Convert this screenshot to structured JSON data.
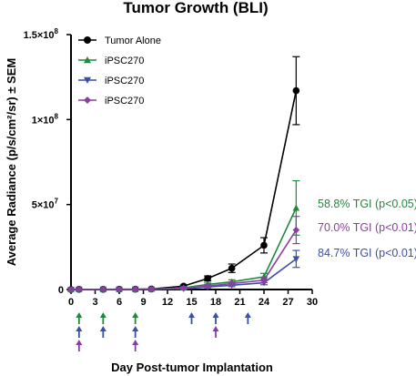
{
  "chart_data": {
    "type": "line",
    "title": "Tumor Growth (BLI)",
    "xlabel": "Day Post-tumor Implantation",
    "ylabel": "Average Radiance (p/s/cm²/sr) ± SEM",
    "xlim": [
      0,
      30
    ],
    "ylim": [
      0,
      150000000
    ],
    "x_ticks": [
      0,
      3,
      6,
      9,
      12,
      15,
      18,
      21,
      24,
      27,
      30
    ],
    "y_ticks": [
      {
        "value": 0,
        "label": "0"
      },
      {
        "value": 50000000,
        "label": "5×10",
        "exp": "7"
      },
      {
        "value": 100000000,
        "label": "1×10",
        "exp": "8"
      },
      {
        "value": 150000000,
        "label": "1.5×10",
        "exp": "8"
      }
    ],
    "legend_position": "top-left",
    "grid": false,
    "series": [
      {
        "name": "Tumor Alone",
        "color": "#000000",
        "marker": "circle",
        "x": [
          0,
          1,
          4,
          6,
          8,
          10,
          14,
          17,
          20,
          24,
          28
        ],
        "y": [
          0,
          100000,
          100000,
          150000,
          200000,
          300000,
          2000000,
          6500000,
          12500000,
          26000000,
          117000000
        ],
        "err": [
          0,
          0,
          0,
          0,
          0,
          0,
          500000,
          1500000,
          2500000,
          4500000,
          20000000
        ]
      },
      {
        "name": "iPSC270",
        "color": "#1f8a3c",
        "marker": "triangle-up",
        "x": [
          0,
          1,
          4,
          6,
          8,
          10,
          14,
          17,
          20,
          24,
          28
        ],
        "y": [
          0,
          100000,
          100000,
          100000,
          100000,
          200000,
          1000000,
          3000000,
          4500000,
          7500000,
          48000000
        ],
        "err": [
          0,
          0,
          0,
          0,
          0,
          0,
          300000,
          800000,
          1200000,
          2000000,
          16000000
        ]
      },
      {
        "name": "iPSC270",
        "color": "#3a4fa8",
        "marker": "triangle-down",
        "x": [
          0,
          1,
          4,
          6,
          8,
          10,
          14,
          17,
          20,
          24,
          28
        ],
        "y": [
          0,
          100000,
          100000,
          100000,
          100000,
          150000,
          500000,
          1500000,
          2500000,
          4000000,
          18000000
        ],
        "err": [
          0,
          0,
          0,
          0,
          0,
          0,
          200000,
          500000,
          800000,
          1200000,
          5000000
        ]
      },
      {
        "name": "iPSC270",
        "color": "#8a3fa0",
        "marker": "diamond",
        "x": [
          0,
          1,
          4,
          6,
          8,
          10,
          14,
          17,
          20,
          24,
          28
        ],
        "y": [
          0,
          100000,
          100000,
          100000,
          100000,
          150000,
          700000,
          2000000,
          3500000,
          5500000,
          35000000
        ],
        "err": [
          0,
          0,
          0,
          0,
          0,
          0,
          200000,
          600000,
          1000000,
          1500000,
          8000000
        ]
      }
    ],
    "annotations": [
      {
        "text": "58.8% TGI (p<0.05)",
        "color": "#1f8a3c",
        "y": 48000000
      },
      {
        "text": "70.0% TGI (p<0.01)",
        "color": "#8a3fa0",
        "y": 38000000
      },
      {
        "text": "84.7% TGI (p<0.01)",
        "color": "#3a4fa8",
        "y": 20000000
      }
    ],
    "dosing_arrows": [
      {
        "x": 1,
        "colors": [
          "#1f8a3c",
          "#3a4fa8",
          "#8a3fa0"
        ]
      },
      {
        "x": 4,
        "colors": [
          "#1f8a3c",
          "#3a4fa8"
        ]
      },
      {
        "x": 8,
        "colors": [
          "#1f8a3c",
          "#3a4fa8",
          "#8a3fa0"
        ]
      },
      {
        "x": 15,
        "colors": [
          "#3a4fa8"
        ]
      },
      {
        "x": 18,
        "colors": [
          "#3a4fa8",
          "#8a3fa0"
        ]
      },
      {
        "x": 22,
        "colors": [
          "#3a4fa8"
        ]
      }
    ]
  }
}
